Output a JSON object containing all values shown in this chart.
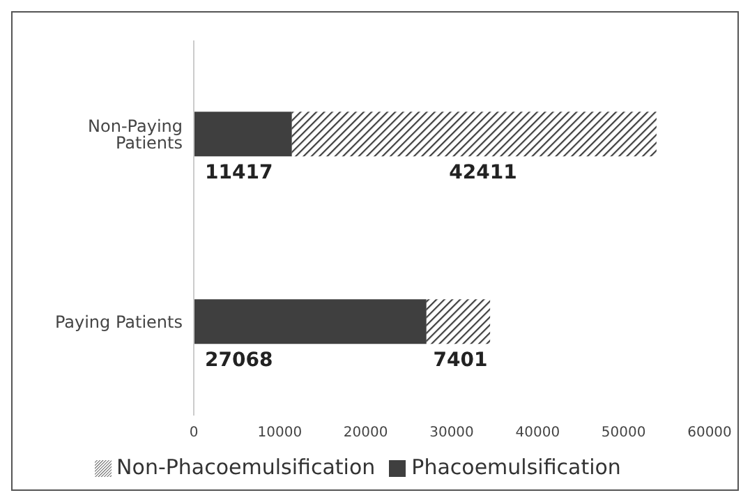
{
  "chart_data": {
    "type": "bar",
    "orientation": "horizontal",
    "stacked": true,
    "categories": [
      "Non-Paying Patients",
      "Paying Patients"
    ],
    "series": [
      {
        "name": "Phacoemulsification",
        "color": "#3f3f3f",
        "values": [
          11417,
          27068
        ]
      },
      {
        "name": "Non-Phacoemulsification",
        "color": "#3f3f3f",
        "values": [
          42411,
          7401
        ]
      }
    ],
    "xlim": [
      0,
      60000
    ],
    "xticks": [
      0,
      10000,
      20000,
      30000,
      40000,
      50000,
      60000
    ],
    "data_labels": true,
    "legend": "bottom",
    "grid": false
  }
}
